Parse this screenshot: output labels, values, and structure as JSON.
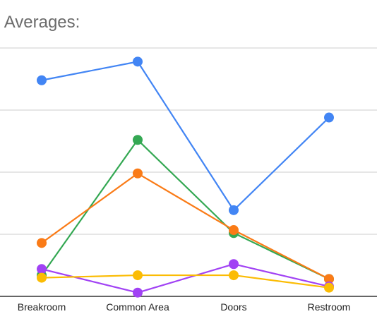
{
  "chart_data": {
    "type": "line",
    "title": "n Averages:",
    "categories": [
      "Breakroom",
      "Common Area",
      "Doors",
      "Restroom"
    ],
    "ylim": [
      0,
      100
    ],
    "grid": true,
    "series": [
      {
        "color": "#4285f4",
        "values": [
          87.0,
          94.5,
          34.7,
          72.0
        ]
      },
      {
        "color": "#34a853",
        "values": [
          8.5,
          63.0,
          25.5,
          7.0
        ]
      },
      {
        "color": "#fa7b17",
        "values": [
          21.5,
          49.5,
          26.7,
          7.0
        ]
      },
      {
        "color": "#a142f4",
        "values": [
          11.0,
          1.5,
          13.0,
          4.0
        ]
      },
      {
        "color": "#fbbc04",
        "values": [
          7.5,
          8.5,
          8.5,
          3.5
        ]
      }
    ]
  }
}
